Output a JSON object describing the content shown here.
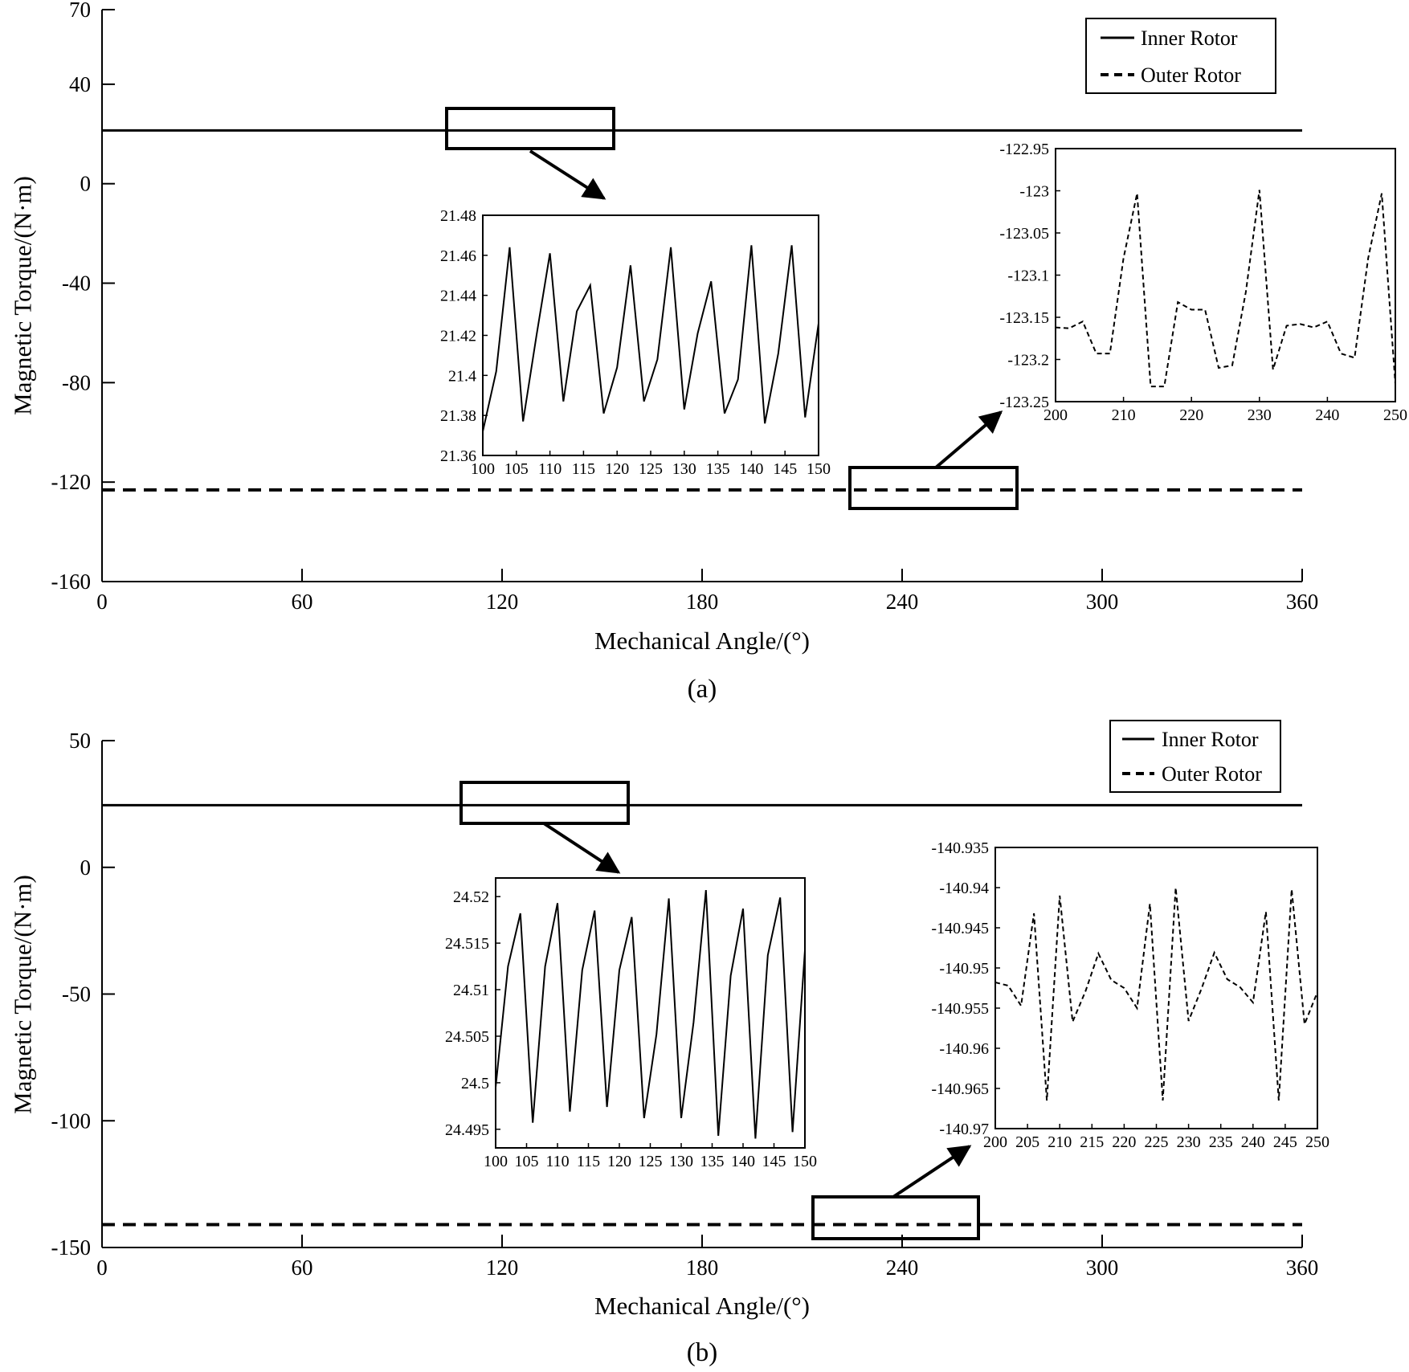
{
  "chart_data": [
    {
      "type": "line",
      "panel_label": "(a)",
      "xlabel": "Mechanical Angle/(°)",
      "ylabel": "Magnetic Torque/(N·m)",
      "xlim": [
        0,
        360
      ],
      "ylim": [
        -160,
        70
      ],
      "xticks": [
        "0",
        "60",
        "120",
        "180",
        "240",
        "300",
        "360"
      ],
      "yticks": [
        "70",
        "40",
        "0",
        "-40",
        "-80",
        "-120",
        "-160"
      ],
      "legend": {
        "position": "top-right",
        "entries": [
          "Inner Rotor",
          "Outer Rotor"
        ]
      },
      "series": [
        {
          "name": "Inner Rotor",
          "style": "solid",
          "x": [
            0,
            360
          ],
          "y": [
            21.42,
            21.42
          ]
        },
        {
          "name": "Outer Rotor",
          "style": "dashed",
          "x": [
            0,
            360
          ],
          "y": [
            -123.15,
            -123.15
          ]
        }
      ],
      "zoom_boxes": [
        {
          "x_range": [
            100,
            150
          ],
          "y_range": [
            13,
            31
          ]
        },
        {
          "x_range": [
            224,
            274
          ],
          "y_range": [
            -131,
            -115
          ]
        }
      ],
      "insets": [
        {
          "series": "Inner Rotor",
          "style": "solid",
          "xlim": [
            100,
            150
          ],
          "ylim": [
            21.36,
            21.48
          ],
          "xticks": [
            "100",
            "105",
            "110",
            "115",
            "120",
            "125",
            "130",
            "135",
            "140",
            "145",
            "150"
          ],
          "yticks": [
            "21.48",
            "21.46",
            "21.44",
            "21.42",
            "21.4",
            "21.38",
            "21.36"
          ],
          "x": [
            100,
            102,
            104,
            106,
            108,
            110,
            112,
            114,
            116,
            118,
            120,
            122,
            124,
            126,
            128,
            130,
            132,
            134,
            136,
            138,
            140,
            142,
            144,
            146,
            148,
            150
          ],
          "y": [
            21.372,
            21.402,
            21.464,
            21.377,
            21.42,
            21.461,
            21.387,
            21.432,
            21.445,
            21.381,
            21.404,
            21.455,
            21.387,
            21.408,
            21.464,
            21.383,
            21.421,
            21.447,
            21.381,
            21.398,
            21.465,
            21.376,
            21.411,
            21.465,
            21.379,
            21.426
          ]
        },
        {
          "series": "Outer Rotor",
          "style": "dashed",
          "xlim": [
            200,
            250
          ],
          "ylim": [
            -123.25,
            -122.95
          ],
          "xticks": [
            "200",
            "210",
            "220",
            "230",
            "240",
            "250"
          ],
          "yticks": [
            "-122.95",
            "-123",
            "-123.05",
            "-123.1",
            "-123.15",
            "-123.2",
            "-123.25"
          ],
          "x": [
            200,
            202,
            204,
            206,
            208,
            210,
            212,
            214,
            216,
            218,
            220,
            222,
            224,
            226,
            228,
            230,
            232,
            234,
            236,
            238,
            240,
            242,
            244,
            246,
            248,
            250
          ],
          "y": [
            -123.162,
            -123.163,
            -123.155,
            -123.193,
            -123.193,
            -123.08,
            -123.003,
            -123.232,
            -123.232,
            -123.132,
            -123.141,
            -123.141,
            -123.21,
            -123.207,
            -123.12,
            -122.999,
            -123.212,
            -123.16,
            -123.158,
            -123.162,
            -123.155,
            -123.193,
            -123.198,
            -123.08,
            -123.003,
            -123.229
          ]
        }
      ]
    },
    {
      "type": "line",
      "panel_label": "(b)",
      "xlabel": "Mechanical Angle/(°)",
      "ylabel": "Magnetic Torque/(N·m)",
      "xlim": [
        0,
        360
      ],
      "ylim": [
        -150,
        50
      ],
      "xticks": [
        "0",
        "60",
        "120",
        "180",
        "240",
        "300",
        "360"
      ],
      "yticks": [
        "50",
        "0",
        "-50",
        "-100",
        "-150"
      ],
      "legend": {
        "position": "top-right",
        "entries": [
          "Inner Rotor",
          "Outer Rotor"
        ]
      },
      "series": [
        {
          "name": "Inner Rotor",
          "style": "solid",
          "x": [
            0,
            360
          ],
          "y": [
            24.51,
            24.51
          ]
        },
        {
          "name": "Outer Rotor",
          "style": "dashed",
          "x": [
            0,
            360
          ],
          "y": [
            -140.95,
            -140.95
          ]
        }
      ],
      "zoom_boxes": [
        {
          "x_range": [
            108,
            158
          ],
          "y_range": [
            17,
            33
          ]
        },
        {
          "x_range": [
            213,
            263
          ],
          "y_range": [
            -146,
            -130
          ]
        }
      ],
      "insets": [
        {
          "series": "Inner Rotor",
          "style": "solid",
          "xlim": [
            100,
            150
          ],
          "ylim": [
            24.493,
            24.522
          ],
          "xticks": [
            "100",
            "105",
            "110",
            "115",
            "120",
            "125",
            "130",
            "135",
            "140",
            "145",
            "150"
          ],
          "yticks": [
            "24.52",
            "24.515",
            "24.51",
            "24.505",
            "24.5",
            "24.495"
          ],
          "x": [
            100,
            102,
            104,
            106,
            108,
            110,
            112,
            114,
            116,
            118,
            120,
            122,
            124,
            126,
            128,
            130,
            132,
            134,
            136,
            138,
            140,
            142,
            144,
            146,
            148,
            150
          ],
          "y": [
            24.4995,
            24.5125,
            24.5182,
            24.4957,
            24.5125,
            24.5193,
            24.4969,
            24.5121,
            24.5185,
            24.4974,
            24.5121,
            24.5178,
            24.4962,
            24.5052,
            24.5198,
            24.4962,
            24.5065,
            24.5207,
            24.4943,
            24.5115,
            24.5187,
            24.494,
            24.5137,
            24.5199,
            24.4947,
            24.5142
          ]
        },
        {
          "series": "Outer Rotor",
          "style": "dashed",
          "xlim": [
            200,
            250
          ],
          "ylim": [
            -140.97,
            -140.935
          ],
          "xticks": [
            "200",
            "205",
            "210",
            "215",
            "220",
            "225",
            "230",
            "235",
            "240",
            "245",
            "250"
          ],
          "yticks": [
            "-140.935",
            "-140.94",
            "-140.945",
            "-140.95",
            "-140.955",
            "-140.96",
            "-140.965",
            "-140.97"
          ],
          "x": [
            200,
            202,
            204,
            206,
            208,
            210,
            212,
            214,
            216,
            218,
            220,
            222,
            224,
            226,
            228,
            230,
            232,
            234,
            236,
            238,
            240,
            242,
            244,
            246,
            248,
            250
          ],
          "y": [
            -140.9518,
            -140.9522,
            -140.9547,
            -140.9432,
            -140.9665,
            -140.941,
            -140.9567,
            -140.9529,
            -140.9482,
            -140.9515,
            -140.9525,
            -140.955,
            -140.942,
            -140.9665,
            -140.94,
            -140.9566,
            -140.9526,
            -140.9481,
            -140.9514,
            -140.9524,
            -140.9543,
            -140.943,
            -140.9665,
            -140.9402,
            -140.957,
            -140.953
          ]
        }
      ]
    }
  ]
}
